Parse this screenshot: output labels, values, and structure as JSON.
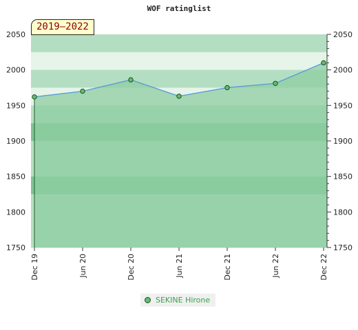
{
  "chart_data": {
    "type": "area",
    "title": "WOF ratinglist",
    "period_label": "2019–2022",
    "categories": [
      "Dec 19",
      "Jun 20",
      "Dec 20",
      "Jun 21",
      "Dec 21",
      "Jun 22",
      "Dec 22"
    ],
    "ylim": [
      1750,
      2050
    ],
    "yticks": [
      1750,
      1800,
      1850,
      1900,
      1950,
      2000,
      2050
    ],
    "grid": false,
    "legend_position": "bottom",
    "series": [
      {
        "name": "SEKINE Hirone",
        "values": [
          1962,
          1970,
          1986,
          1963,
          1975,
          1981,
          2010
        ]
      }
    ],
    "colors": {
      "line": "#5b9bd5",
      "marker_fill": "#5fbf6f",
      "marker_stroke": "#1e4d1e",
      "legend_text": "#3aa04a",
      "badge_text": "#8b0000",
      "badge_bg": "#ffffcc",
      "band_light": "#e6f4ea",
      "band_mid": "#b4dec2",
      "band_dark": "#7cc595",
      "area_fill": "#8fcda2"
    }
  }
}
